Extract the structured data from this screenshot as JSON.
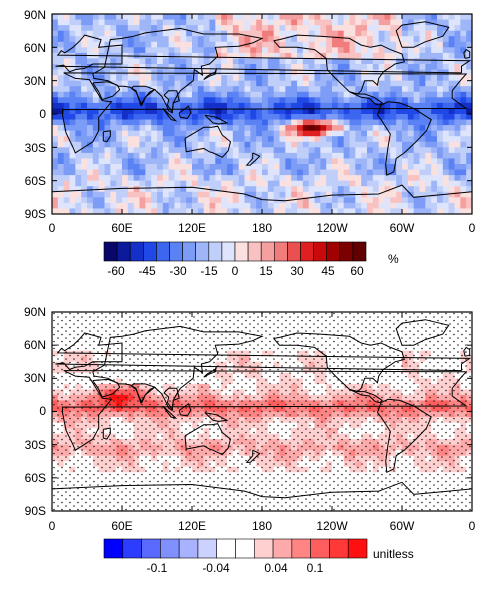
{
  "chart_data": [
    {
      "type": "heatmap",
      "x_ticks": [
        "0",
        "60E",
        "120E",
        "180",
        "120W",
        "60W",
        "0"
      ],
      "y_ticks": [
        "90N",
        "60N",
        "30N",
        "0",
        "30S",
        "60S",
        "90S"
      ],
      "xlim": [
        0,
        360
      ],
      "ylim": [
        -90,
        90
      ],
      "colorbar": {
        "tick_labels": [
          "-60",
          "-45",
          "-30",
          "-15",
          "0",
          "15",
          "30",
          "45",
          "60"
        ],
        "unit": "%",
        "colors": [
          "#08086b",
          "#0b1a9c",
          "#1430c8",
          "#2048e6",
          "#3c66f0",
          "#5a82f4",
          "#7c9cf6",
          "#9eb6f8",
          "#c0cefa",
          "#dde4fb",
          "#fbe0e0",
          "#f9c2c2",
          "#f5a0a0",
          "#f07c7c",
          "#ea5050",
          "#e02020",
          "#c80a0a",
          "#a00000",
          "#7c0000",
          "#600000"
        ]
      },
      "features": {
        "tropical_negative_band": {
          "lat_center": 3,
          "lat_halfwidth": 12,
          "value": -30
        },
        "east_pacific_positive_patch": {
          "lon": 225,
          "lat": -12,
          "value": 30
        },
        "global_background": -10
      }
    },
    {
      "type": "heatmap",
      "x_ticks": [
        "0",
        "60E",
        "120E",
        "180",
        "120W",
        "60W",
        "0"
      ],
      "y_ticks": [
        "90N",
        "60N",
        "30N",
        "0",
        "30S",
        "60S",
        "90S"
      ],
      "xlim": [
        0,
        360
      ],
      "ylim": [
        -90,
        90
      ],
      "stippling": true,
      "colorbar": {
        "tick_labels": [
          "-0.1",
          "-0.04",
          "0.04",
          "0.1"
        ],
        "unit": "unitless",
        "colors": [
          "#0000ff",
          "#2d3dff",
          "#5a6aff",
          "#8090ff",
          "#a8b2ff",
          "#ccd2ff",
          "#ffffff",
          "#ffffff",
          "#ffd0d0",
          "#ffaaaa",
          "#ff8484",
          "#ff5e5e",
          "#ff3838",
          "#ff1010"
        ]
      },
      "features": {
        "tropical_positive_band": {
          "lat_center": 4,
          "lat_halfwidth": 10,
          "value": 0.06
        },
        "arabian_sea_maximum": {
          "lon": 60,
          "lat": 15,
          "value": 0.1
        },
        "global_background": 0.02
      }
    }
  ]
}
